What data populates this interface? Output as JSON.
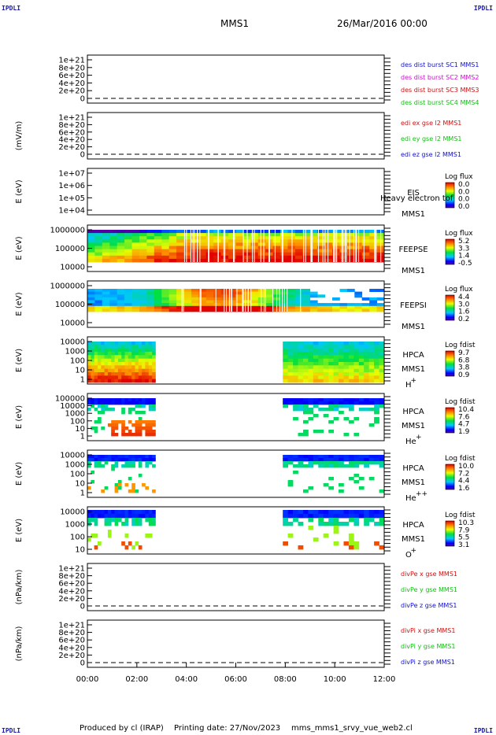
{
  "header": {
    "corner_tl": "IPDLI",
    "corner_tr": "IPDLI",
    "corner_bl": "IPDLI",
    "corner_br": "IPDLI",
    "spacecraft": "MMS1",
    "date": "26/Mar/2016 00:00"
  },
  "footer": {
    "produced": "Produced by cl (IRAP)",
    "printing": "Printing date: 27/Nov/2023",
    "script": "mms_mms1_srvy_vue_web2.cl"
  },
  "chart_data": {
    "type": "heatmap",
    "time_axis": {
      "ticks": [
        "00:00",
        "02:00",
        "04:00",
        "06:00",
        "08:00",
        "10:00",
        "12:00"
      ],
      "range_hours": [
        0,
        12
      ]
    },
    "panels": [
      {
        "id": "des",
        "kind": "line",
        "ylabel": "",
        "y_ticks": [
          "1e+21",
          "8e+20",
          "6e+20",
          "4e+20",
          "2e+20",
          "0"
        ],
        "legend": [
          {
            "text": "des dist burst SC1 MMS1",
            "color": "#1010d0"
          },
          {
            "text": "des dist burst SC2 MMS2",
            "color": "#d010d0"
          },
          {
            "text": "des dist burst SC3 MMS3",
            "color": "#d01010"
          },
          {
            "text": "des dist burst SC4 MMS4",
            "color": "#10c010"
          }
        ]
      },
      {
        "id": "edi",
        "kind": "line",
        "ylabel": "(mV/m)",
        "y_ticks": [
          "1e+21",
          "8e+20",
          "6e+20",
          "4e+20",
          "2e+20",
          "0"
        ],
        "legend": [
          {
            "text": "edi ex gse l2 MMS1",
            "color": "#d01010"
          },
          {
            "text": "edi ey gse l2 MMS1",
            "color": "#10c010"
          },
          {
            "text": "edi ez gse l2 MMS1",
            "color": "#1010d0"
          }
        ]
      },
      {
        "id": "eis",
        "kind": "spectrogram",
        "ylabel": "E (eV)",
        "y_ticks": [
          "1e+07",
          "1e+06",
          "1e+05",
          "1e+04"
        ],
        "instrument": "EIS",
        "overlay": "Heavy electron tof",
        "spacecraft": "MMS1",
        "cbar_title": "Log flux",
        "cbar_ticks": [
          "0.0",
          "0.0",
          "0.0",
          "0.0"
        ],
        "fill": "none"
      },
      {
        "id": "feepse",
        "kind": "spectrogram",
        "ylabel": "E (eV)",
        "y_ticks": [
          "1000000",
          "100000",
          "10000"
        ],
        "instrument": "FEEPSE",
        "spacecraft": "MMS1",
        "cbar_title": "Log flux",
        "cbar_ticks": [
          "5.2",
          "3.3",
          "1.4",
          "-0.5"
        ],
        "fill": "feepse"
      },
      {
        "id": "feepsi",
        "kind": "spectrogram",
        "ylabel": "E (eV)",
        "y_ticks": [
          "1000000",
          "100000",
          "10000"
        ],
        "instrument": "FEEPSI",
        "spacecraft": "MMS1",
        "cbar_title": "Log flux",
        "cbar_ticks": [
          "4.4",
          "3.0",
          "1.6",
          "0.2"
        ],
        "fill": "feepsi"
      },
      {
        "id": "hpca_h",
        "kind": "spectrogram",
        "ylabel": "E (eV)",
        "y_ticks": [
          "10000",
          "1000",
          "100",
          "10",
          "1"
        ],
        "instrument": "HPCA",
        "spacecraft": "MMS1",
        "species": "H",
        "species_sup": "+",
        "cbar_title": "Log fdist",
        "cbar_ticks": [
          "9.7",
          "6.8",
          "3.8",
          "0.9"
        ],
        "fill": "hpca_h",
        "data_intervals_hours": [
          [
            0,
            2.75
          ],
          [
            7.9,
            12
          ]
        ]
      },
      {
        "id": "hpca_he",
        "kind": "spectrogram",
        "ylabel": "E (eV)",
        "y_ticks": [
          "100000",
          "10000",
          "1000",
          "100",
          "10",
          "1"
        ],
        "instrument": "HPCA",
        "spacecraft": "MMS1",
        "species": "He",
        "species_sup": "+",
        "cbar_title": "Log fdist",
        "cbar_ticks": [
          "10.4",
          "7.6",
          "4.7",
          "1.9"
        ],
        "fill": "hpca_he",
        "data_intervals_hours": [
          [
            0,
            2.75
          ],
          [
            7.9,
            12
          ]
        ]
      },
      {
        "id": "hpca_hepp",
        "kind": "spectrogram",
        "ylabel": "E (eV)",
        "y_ticks": [
          "10000",
          "1000",
          "100",
          "10",
          "1"
        ],
        "instrument": "HPCA",
        "spacecraft": "MMS1",
        "species": "He",
        "species_sup": "++",
        "cbar_title": "Log fdist",
        "cbar_ticks": [
          "10.0",
          "7.2",
          "4.4",
          "1.6"
        ],
        "fill": "hpca_hepp",
        "data_intervals_hours": [
          [
            0,
            2.75
          ],
          [
            7.9,
            12
          ]
        ]
      },
      {
        "id": "hpca_o",
        "kind": "spectrogram",
        "ylabel": "E (eV)",
        "y_ticks": [
          "10000",
          "1000",
          "100",
          "10"
        ],
        "instrument": "HPCA",
        "spacecraft": "MMS1",
        "species": "O",
        "species_sup": "+",
        "cbar_title": "Log fdist",
        "cbar_ticks": [
          "10.3",
          "7.9",
          "5.5",
          "3.1"
        ],
        "fill": "hpca_o",
        "data_intervals_hours": [
          [
            0,
            2.75
          ],
          [
            7.9,
            12
          ]
        ]
      },
      {
        "id": "divpe",
        "kind": "line",
        "ylabel": "(nPa/km)",
        "y_ticks": [
          "1e+21",
          "8e+20",
          "6e+20",
          "4e+20",
          "2e+20",
          "0"
        ],
        "legend": [
          {
            "text": "divPe x gse MMS1",
            "color": "#d01010"
          },
          {
            "text": "divPe y gse MMS1",
            "color": "#10c010"
          },
          {
            "text": "divPe z gse MMS1",
            "color": "#1010d0"
          }
        ]
      },
      {
        "id": "divpi",
        "kind": "line",
        "ylabel": "(nPa/km)",
        "y_ticks": [
          "1e+21",
          "8e+20",
          "6e+20",
          "4e+20",
          "2e+20",
          "0"
        ],
        "legend": [
          {
            "text": "divPi x gse MMS1",
            "color": "#d01010"
          },
          {
            "text": "divPi y gse MMS1",
            "color": "#10c010"
          },
          {
            "text": "divPi z gse MMS1",
            "color": "#1010d0"
          }
        ]
      }
    ]
  }
}
